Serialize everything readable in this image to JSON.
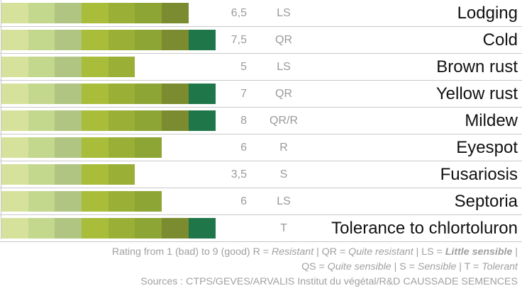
{
  "segment_colors": [
    "#d6e29b",
    "#c3d78d",
    "#b0c581",
    "#a9bd3b",
    "#9aaf35",
    "#8da534",
    "#7b8b2f",
    "#1f7648"
  ],
  "rows": [
    {
      "label": "Lodging",
      "value": "6,5",
      "resistance": "LS",
      "rating": 7
    },
    {
      "label": "Cold",
      "value": "7,5",
      "resistance": "QR",
      "rating": 8
    },
    {
      "label": "Brown rust",
      "value": "5",
      "resistance": "LS",
      "rating": 5
    },
    {
      "label": "Yellow rust",
      "value": "7",
      "resistance": "QR",
      "rating": 8
    },
    {
      "label": "Mildew",
      "value": "8",
      "resistance": "QR/R",
      "rating": 8
    },
    {
      "label": "Eyespot",
      "value": "6",
      "resistance": "R",
      "rating": 6
    },
    {
      "label": "Fusariosis",
      "value": "3,5",
      "resistance": "S",
      "rating": 5
    },
    {
      "label": "Septoria",
      "value": "6",
      "resistance": "LS",
      "rating": 6
    },
    {
      "label": "Tolerance to chlortoluron",
      "value": "",
      "resistance": "T",
      "rating": 8
    }
  ],
  "legend": {
    "intro": "Rating from 1 (bad) to 9 (good) R = ",
    "r": "Resistant",
    "sep1": " | QR = ",
    "qr": "Quite resistant",
    "sep2": " | LS = ",
    "ls": "Little sensible",
    "sep3": " |",
    "qs_prefix": "QS = ",
    "qs": "Quite sensible",
    "sep4": " | S = ",
    "s": "Sensible",
    "sep5": " | T = ",
    "t": "Tolerant",
    "sources": "Sources : CTPS/GEVES/ARVALIS Institut du végétal/R&D CAUSSADE SEMENCES"
  }
}
